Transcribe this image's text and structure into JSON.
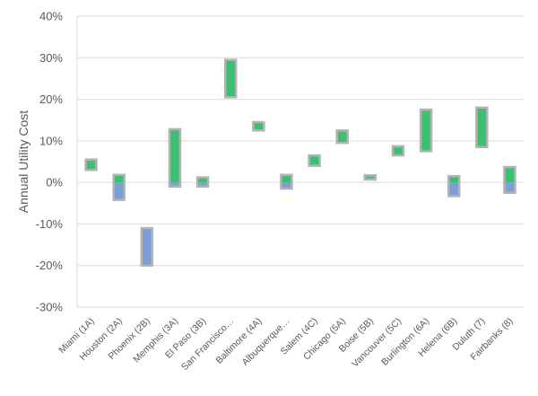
{
  "chart_data": {
    "type": "bar",
    "subtype": "floating-range",
    "title": "",
    "xlabel": "",
    "ylabel": "Annual Utility Cost",
    "ylim": [
      -30,
      40
    ],
    "yticks": [
      "-30%",
      "-20%",
      "-10%",
      "0%",
      "10%",
      "20%",
      "30%",
      "40%"
    ],
    "ytick_values": [
      -30,
      -20,
      -10,
      0,
      10,
      20,
      30,
      40
    ],
    "grid": true,
    "legend": "none",
    "categories": [
      "Miami (1A)",
      "Houston (2A)",
      "Phoenix (2B)",
      "Memphis (3A)",
      "El Paso (3B)",
      "San Francisco…",
      "Baltimore (4A)",
      "Albuquerque…",
      "Salem (4C)",
      "Chicago (5A)",
      "Boise (5B)",
      "Vancouver (5C)",
      "Burlington (6A)",
      "Helena (6B)",
      "Duluth (7)",
      "Fairbanks (8)"
    ],
    "ranges": [
      {
        "low": 3.0,
        "high": 5.5
      },
      {
        "low": -4.2,
        "high": 1.8
      },
      {
        "low": -20.0,
        "high": -11.0
      },
      {
        "low": -1.0,
        "high": 12.8
      },
      {
        "low": -1.0,
        "high": 1.2
      },
      {
        "low": 20.5,
        "high": 29.5
      },
      {
        "low": 12.5,
        "high": 14.5
      },
      {
        "low": -1.5,
        "high": 1.8
      },
      {
        "low": 4.0,
        "high": 6.5
      },
      {
        "low": 9.5,
        "high": 12.5
      },
      {
        "low": 0.7,
        "high": 1.7
      },
      {
        "low": 6.5,
        "high": 8.7
      },
      {
        "low": 7.5,
        "high": 17.5
      },
      {
        "low": -3.3,
        "high": 1.5
      },
      {
        "low": 8.5,
        "high": 18.0
      },
      {
        "low": -2.5,
        "high": 3.7
      }
    ],
    "colors": {
      "positive": "#3cbf72",
      "negative": "#7d9fd6",
      "outline": "#b3b3b3",
      "grid": "#d9d9d9",
      "axis": "#595959"
    }
  }
}
